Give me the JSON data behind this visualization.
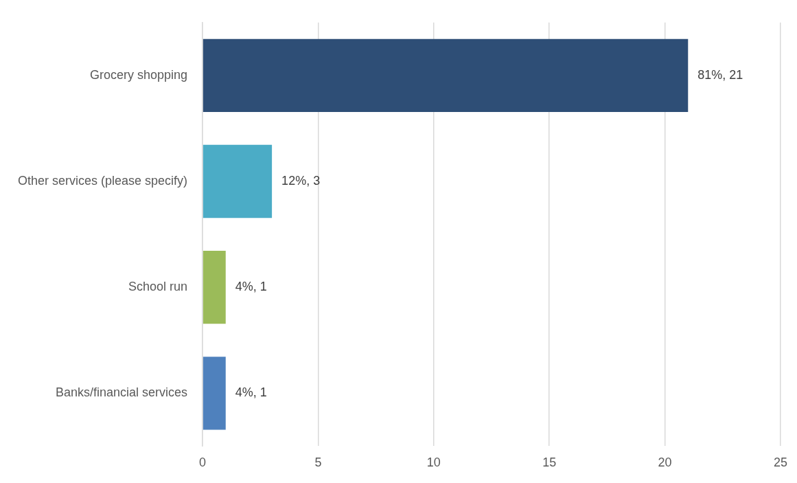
{
  "chart_data": {
    "type": "bar",
    "orientation": "horizontal",
    "categories": [
      "Grocery shopping",
      "Other services (please specify)",
      "School run",
      "Banks/financial services"
    ],
    "values": [
      21,
      3,
      1,
      1
    ],
    "colors": [
      "#2e4e76",
      "#4bacc6",
      "#9bbb59",
      "#4f81bd"
    ],
    "value_labels": [
      "81%, 21",
      "12%, 3",
      "4%, 1",
      "4%, 1"
    ],
    "xlim": [
      0,
      25
    ],
    "xticks": [
      0,
      5,
      10,
      15,
      20,
      25
    ],
    "grid": "x",
    "legend": false
  }
}
